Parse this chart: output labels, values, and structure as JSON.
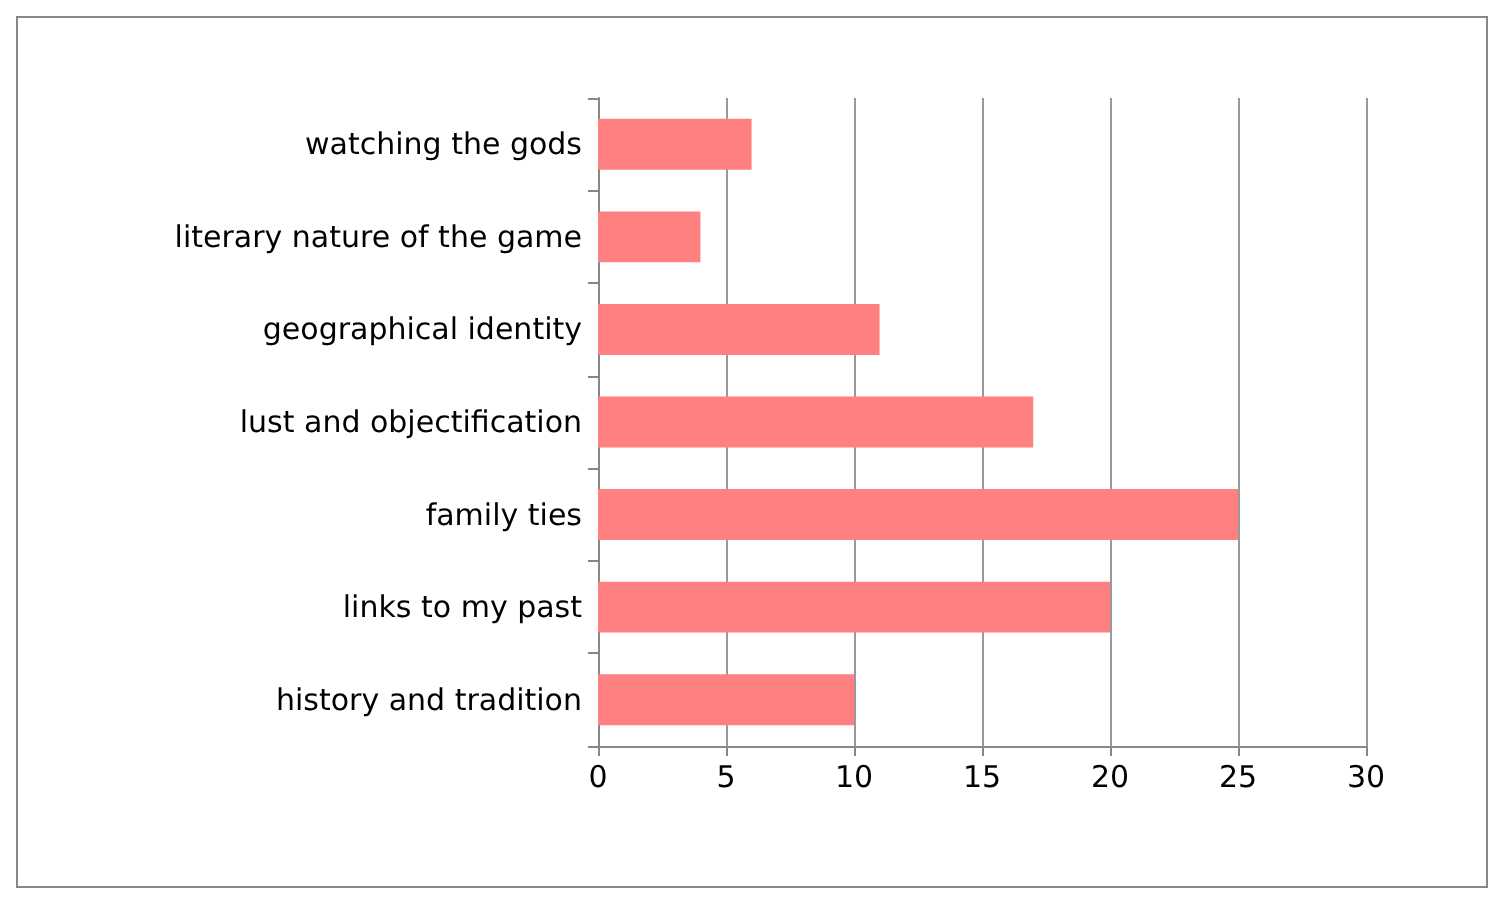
{
  "chart_data": {
    "type": "bar",
    "orientation": "horizontal",
    "categories": [
      "watching the gods",
      "literary nature of the game",
      "geographical identity",
      "lust and objectification",
      "family ties",
      "links to my past",
      "history and tradition"
    ],
    "values": [
      6,
      4,
      11,
      17,
      25,
      20,
      10
    ],
    "color": "#ff8080",
    "xlim": [
      0,
      30
    ],
    "xticks": [
      0,
      5,
      10,
      15,
      20,
      25,
      30
    ],
    "grid": "x"
  }
}
